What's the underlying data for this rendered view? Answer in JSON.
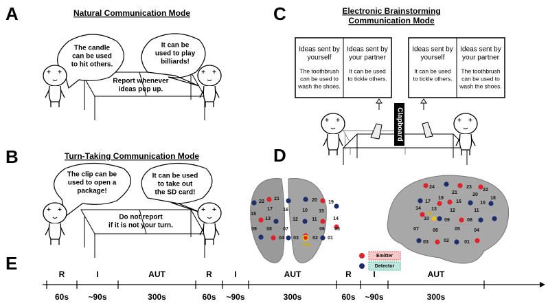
{
  "panels": {
    "a": {
      "letter": "A",
      "title": "Natural Communication Mode",
      "left_bubble": [
        "The candle",
        "can be used",
        "to hit others."
      ],
      "right_bubble": [
        "It can be",
        "used to play",
        "billiards!"
      ],
      "table_note": [
        "Report whenever",
        "ideas pop up."
      ]
    },
    "b": {
      "letter": "B",
      "title": "Turn-Taking Communication Mode",
      "left_bubble": [
        "The clip can be",
        "used to open a",
        "package!"
      ],
      "right_bubble": [
        "It can be used",
        "to take out",
        "the SD card!"
      ],
      "table_note": [
        "Do not report",
        "if it is not your turn."
      ]
    },
    "c": {
      "letter": "C",
      "title": [
        "Electronic Brainstorming",
        "Communication Mode"
      ],
      "screens": [
        {
          "left": {
            "heading": [
              "Ideas sent by",
              "yourself"
            ],
            "body": [
              "The toothbrush",
              "can be used to",
              "wash the shoes."
            ]
          },
          "right": {
            "heading": [
              "Ideas sent by",
              "your partner"
            ],
            "body": [
              "It can be used",
              "to tickle others."
            ]
          }
        },
        {
          "left": {
            "heading": [
              "Ideas sent by",
              "yourself"
            ],
            "body": [
              "It can be used",
              "to tickle others."
            ]
          },
          "right": {
            "heading": [
              "Ideas sent by",
              "your partner"
            ],
            "body": [
              "The toothbrush",
              "can be used to",
              "wash the shoes."
            ]
          }
        }
      ],
      "divider": "Clapboard"
    },
    "d": {
      "letter": "D",
      "front_channels": [
        "22",
        "21",
        "20",
        "19",
        "17",
        "16",
        "10",
        "15",
        "18",
        "13",
        "12",
        "11",
        "14",
        "09",
        "08",
        "07",
        "06",
        "05",
        "04",
        "03",
        "02",
        "01"
      ],
      "lateral_channels": [
        "24",
        "23",
        "22",
        "21",
        "20",
        "19",
        "18",
        "17",
        "16",
        "15",
        "14",
        "13",
        "12",
        "11",
        "10",
        "09",
        "08",
        "07",
        "06",
        "05",
        "04",
        "03",
        "02",
        "01"
      ],
      "front_marker": "Fpz",
      "lateral_marker": "T9",
      "legend": [
        "Emitter",
        "Detector"
      ]
    },
    "e": {
      "letter": "E",
      "phases": [
        {
          "label": "R",
          "duration": "60s"
        },
        {
          "label": "I",
          "duration": "~90s"
        },
        {
          "label": "AUT",
          "duration": "300s"
        },
        {
          "label": "R",
          "duration": "60s"
        },
        {
          "label": "I",
          "duration": "~90s"
        },
        {
          "label": "AUT",
          "duration": "300s"
        },
        {
          "label": "R",
          "duration": "60s"
        },
        {
          "label": "I",
          "duration": "~90s"
        },
        {
          "label": "AUT",
          "duration": "300s"
        }
      ]
    }
  }
}
